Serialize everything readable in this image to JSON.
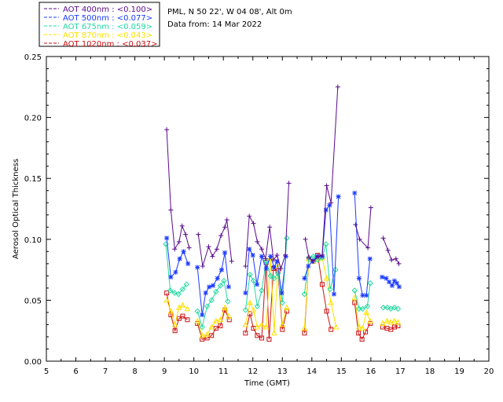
{
  "header": {
    "site": "PML, N 50 22', W 04 08', Alt 0m",
    "date": "Data from: 14 Mar 2022"
  },
  "chart_data": {
    "type": "line",
    "xlabel": "Time (GMT)",
    "ylabel": "Aerosol Optical Thickness",
    "xlim": [
      5,
      20
    ],
    "ylim": [
      0,
      0.25
    ],
    "x_ticks": [
      "5",
      "6",
      "7",
      "8",
      "9",
      "10",
      "11",
      "12",
      "13",
      "14",
      "15",
      "16",
      "17",
      "18",
      "19",
      "20"
    ],
    "y_ticks": [
      "0.00",
      "0.05",
      "0.10",
      "0.15",
      "0.20",
      "0.25"
    ],
    "grid": false,
    "legend_position": "top-left",
    "series": [
      {
        "name": "AOT  400nm : <0.100>",
        "color": "#5a0a8c",
        "marker": "plus",
        "segments": [
          [
            [
              9.08,
              0.19
            ],
            [
              9.22,
              0.124
            ],
            [
              9.35,
              0.092
            ],
            [
              9.5,
              0.098
            ],
            [
              9.6,
              0.111
            ],
            [
              9.72,
              0.104
            ],
            [
              9.84,
              0.093
            ]
          ],
          [
            [
              10.15,
              0.104
            ],
            [
              10.3,
              0.078
            ],
            [
              10.5,
              0.094
            ],
            [
              10.63,
              0.086
            ],
            [
              10.78,
              0.092
            ],
            [
              10.92,
              0.103
            ],
            [
              11.05,
              0.11
            ],
            [
              11.12,
              0.116
            ],
            [
              11.28,
              0.082
            ]
          ],
          [
            [
              11.75,
              0.078
            ],
            [
              11.88,
              0.119
            ],
            [
              12.02,
              0.113
            ],
            [
              12.15,
              0.098
            ],
            [
              12.3,
              0.092
            ],
            [
              12.43,
              0.084
            ],
            [
              12.57,
              0.11
            ],
            [
              12.7,
              0.083
            ],
            [
              12.82,
              0.087
            ],
            [
              12.95,
              0.076
            ],
            [
              13.1,
              0.087
            ],
            [
              13.22,
              0.146
            ]
          ],
          [
            [
              13.78,
              0.1
            ],
            [
              13.9,
              0.085
            ],
            [
              14.05,
              0.082
            ],
            [
              14.22,
              0.086
            ],
            [
              14.35,
              0.087
            ],
            [
              14.5,
              0.144
            ],
            [
              14.65,
              0.13
            ],
            [
              14.88,
              0.225
            ]
          ],
          [
            [
              15.48,
              0.112
            ],
            [
              15.62,
              0.1
            ],
            [
              15.9,
              0.093
            ],
            [
              16.0,
              0.126
            ]
          ],
          [
            [
              16.42,
              0.101
            ],
            [
              16.58,
              0.091
            ],
            [
              16.7,
              0.083
            ],
            [
              16.85,
              0.084
            ],
            [
              16.95,
              0.08
            ]
          ]
        ]
      },
      {
        "name": "AOT  500nm : <0.077>",
        "color": "#1a3aff",
        "marker": "star",
        "segments": [
          [
            [
              9.08,
              0.101
            ],
            [
              9.22,
              0.069
            ],
            [
              9.38,
              0.073
            ],
            [
              9.52,
              0.084
            ],
            [
              9.65,
              0.09
            ],
            [
              9.8,
              0.08
            ]
          ],
          [
            [
              10.12,
              0.077
            ],
            [
              10.28,
              0.038
            ],
            [
              10.4,
              0.056
            ],
            [
              10.52,
              0.061
            ],
            [
              10.65,
              0.062
            ],
            [
              10.8,
              0.068
            ],
            [
              10.94,
              0.075
            ],
            [
              11.05,
              0.089
            ],
            [
              11.18,
              0.061
            ]
          ],
          [
            [
              11.75,
              0.056
            ],
            [
              11.88,
              0.092
            ],
            [
              12.0,
              0.087
            ],
            [
              12.14,
              0.063
            ],
            [
              12.3,
              0.086
            ],
            [
              12.45,
              0.076
            ],
            [
              12.6,
              0.086
            ],
            [
              12.72,
              0.077
            ],
            [
              12.82,
              0.082
            ],
            [
              12.98,
              0.056
            ],
            [
              13.12,
              0.086
            ]
          ],
          [
            [
              13.75,
              0.068
            ],
            [
              13.88,
              0.078
            ],
            [
              14.02,
              0.082
            ],
            [
              14.18,
              0.086
            ],
            [
              14.35,
              0.086
            ],
            [
              14.48,
              0.124
            ],
            [
              14.6,
              0.128
            ],
            [
              14.75,
              0.055
            ],
            [
              14.9,
              0.135
            ]
          ],
          [
            [
              15.45,
              0.138
            ],
            [
              15.6,
              0.068
            ],
            [
              15.72,
              0.054
            ],
            [
              15.85,
              0.054
            ],
            [
              15.97,
              0.084
            ]
          ],
          [
            [
              16.38,
              0.069
            ],
            [
              16.52,
              0.068
            ],
            [
              16.62,
              0.065
            ],
            [
              16.72,
              0.062
            ],
            [
              16.8,
              0.066
            ],
            [
              16.88,
              0.064
            ],
            [
              16.96,
              0.061
            ]
          ]
        ]
      },
      {
        "name": "AOT  675nm : <0.059>",
        "color": "#22d8a0",
        "marker": "diamond",
        "segments": [
          [
            [
              9.05,
              0.096
            ],
            [
              9.2,
              0.058
            ],
            [
              9.35,
              0.056
            ],
            [
              9.48,
              0.055
            ],
            [
              9.62,
              0.059
            ],
            [
              9.75,
              0.063
            ]
          ],
          [
            [
              10.12,
              0.041
            ],
            [
              10.28,
              0.028
            ],
            [
              10.45,
              0.045
            ],
            [
              10.6,
              0.05
            ],
            [
              10.75,
              0.057
            ],
            [
              10.9,
              0.062
            ],
            [
              11.02,
              0.066
            ],
            [
              11.15,
              0.049
            ]
          ],
          [
            [
              11.75,
              0.042
            ],
            [
              11.9,
              0.071
            ],
            [
              12.02,
              0.066
            ],
            [
              12.15,
              0.045
            ],
            [
              12.3,
              0.058
            ],
            [
              12.45,
              0.082
            ],
            [
              12.6,
              0.07
            ],
            [
              12.72,
              0.068
            ],
            [
              12.85,
              0.072
            ],
            [
              13.0,
              0.048
            ],
            [
              13.15,
              0.101
            ]
          ],
          [
            [
              13.75,
              0.055
            ],
            [
              13.9,
              0.085
            ],
            [
              14.05,
              0.086
            ],
            [
              14.2,
              0.083
            ],
            [
              14.35,
              0.085
            ],
            [
              14.48,
              0.096
            ],
            [
              14.62,
              0.059
            ],
            [
              14.8,
              0.075
            ]
          ],
          [
            [
              15.45,
              0.058
            ],
            [
              15.6,
              0.043
            ],
            [
              15.72,
              0.043
            ],
            [
              15.88,
              0.045
            ],
            [
              15.98,
              0.064
            ]
          ],
          [
            [
              16.42,
              0.044
            ],
            [
              16.56,
              0.044
            ],
            [
              16.68,
              0.043
            ],
            [
              16.8,
              0.044
            ],
            [
              16.92,
              0.043
            ]
          ]
        ]
      },
      {
        "name": "AOT  870nm : <0.043>",
        "color": "#ffe000",
        "marker": "triangle",
        "segments": [
          [
            [
              9.08,
              0.05
            ],
            [
              9.22,
              0.041
            ],
            [
              9.36,
              0.03
            ],
            [
              9.5,
              0.044
            ],
            [
              9.62,
              0.046
            ],
            [
              9.78,
              0.043
            ]
          ],
          [
            [
              10.12,
              0.033
            ],
            [
              10.28,
              0.021
            ],
            [
              10.45,
              0.022
            ],
            [
              10.6,
              0.028
            ],
            [
              10.75,
              0.033
            ],
            [
              10.9,
              0.034
            ],
            [
              11.05,
              0.044
            ],
            [
              11.18,
              0.037
            ]
          ],
          [
            [
              11.75,
              0.03
            ],
            [
              11.9,
              0.048
            ],
            [
              12.02,
              0.042
            ],
            [
              12.15,
              0.028
            ],
            [
              12.3,
              0.03
            ],
            [
              12.45,
              0.028
            ],
            [
              12.6,
              0.085
            ],
            [
              12.72,
              0.023
            ],
            [
              12.85,
              0.078
            ],
            [
              13.0,
              0.03
            ],
            [
              13.15,
              0.044
            ]
          ],
          [
            [
              13.75,
              0.027
            ],
            [
              13.9,
              0.084
            ],
            [
              14.05,
              0.082
            ],
            [
              14.2,
              0.084
            ],
            [
              14.35,
              0.085
            ],
            [
              14.5,
              0.068
            ],
            [
              14.65,
              0.048
            ],
            [
              14.82,
              0.028
            ]
          ],
          [
            [
              15.45,
              0.052
            ],
            [
              15.6,
              0.028
            ],
            [
              15.72,
              0.027
            ],
            [
              15.85,
              0.04
            ],
            [
              15.98,
              0.033
            ]
          ],
          [
            [
              16.4,
              0.031
            ],
            [
              16.55,
              0.033
            ],
            [
              16.68,
              0.032
            ],
            [
              16.8,
              0.033
            ],
            [
              16.92,
              0.032
            ]
          ]
        ]
      },
      {
        "name": "AOT 1020nm : <0.037>",
        "color": "#cc1111",
        "marker": "square",
        "segments": [
          [
            [
              9.08,
              0.056
            ],
            [
              9.22,
              0.038
            ],
            [
              9.36,
              0.025
            ],
            [
              9.5,
              0.035
            ],
            [
              9.62,
              0.037
            ],
            [
              9.78,
              0.034
            ]
          ],
          [
            [
              10.12,
              0.031
            ],
            [
              10.28,
              0.018
            ],
            [
              10.45,
              0.019
            ],
            [
              10.6,
              0.021
            ],
            [
              10.75,
              0.027
            ],
            [
              10.9,
              0.029
            ],
            [
              11.05,
              0.042
            ],
            [
              11.2,
              0.034
            ]
          ],
          [
            [
              11.75,
              0.023
            ],
            [
              11.9,
              0.039
            ],
            [
              12.02,
              0.027
            ],
            [
              12.15,
              0.021
            ],
            [
              12.3,
              0.019
            ],
            [
              12.45,
              0.081
            ],
            [
              12.55,
              0.018
            ],
            [
              12.7,
              0.076
            ],
            [
              12.85,
              0.074
            ],
            [
              13.0,
              0.026
            ],
            [
              13.15,
              0.041
            ]
          ],
          [
            [
              13.75,
              0.023
            ],
            [
              13.9,
              0.084
            ],
            [
              14.05,
              0.082
            ],
            [
              14.2,
              0.087
            ],
            [
              14.35,
              0.063
            ],
            [
              14.5,
              0.041
            ],
            [
              14.65,
              0.026
            ]
          ],
          [
            [
              15.45,
              0.048
            ],
            [
              15.58,
              0.023
            ],
            [
              15.7,
              0.018
            ],
            [
              15.82,
              0.024
            ],
            [
              15.98,
              0.031
            ]
          ],
          [
            [
              16.4,
              0.028
            ],
            [
              16.55,
              0.027
            ],
            [
              16.68,
              0.026
            ],
            [
              16.8,
              0.028
            ],
            [
              16.92,
              0.029
            ]
          ]
        ]
      }
    ]
  }
}
